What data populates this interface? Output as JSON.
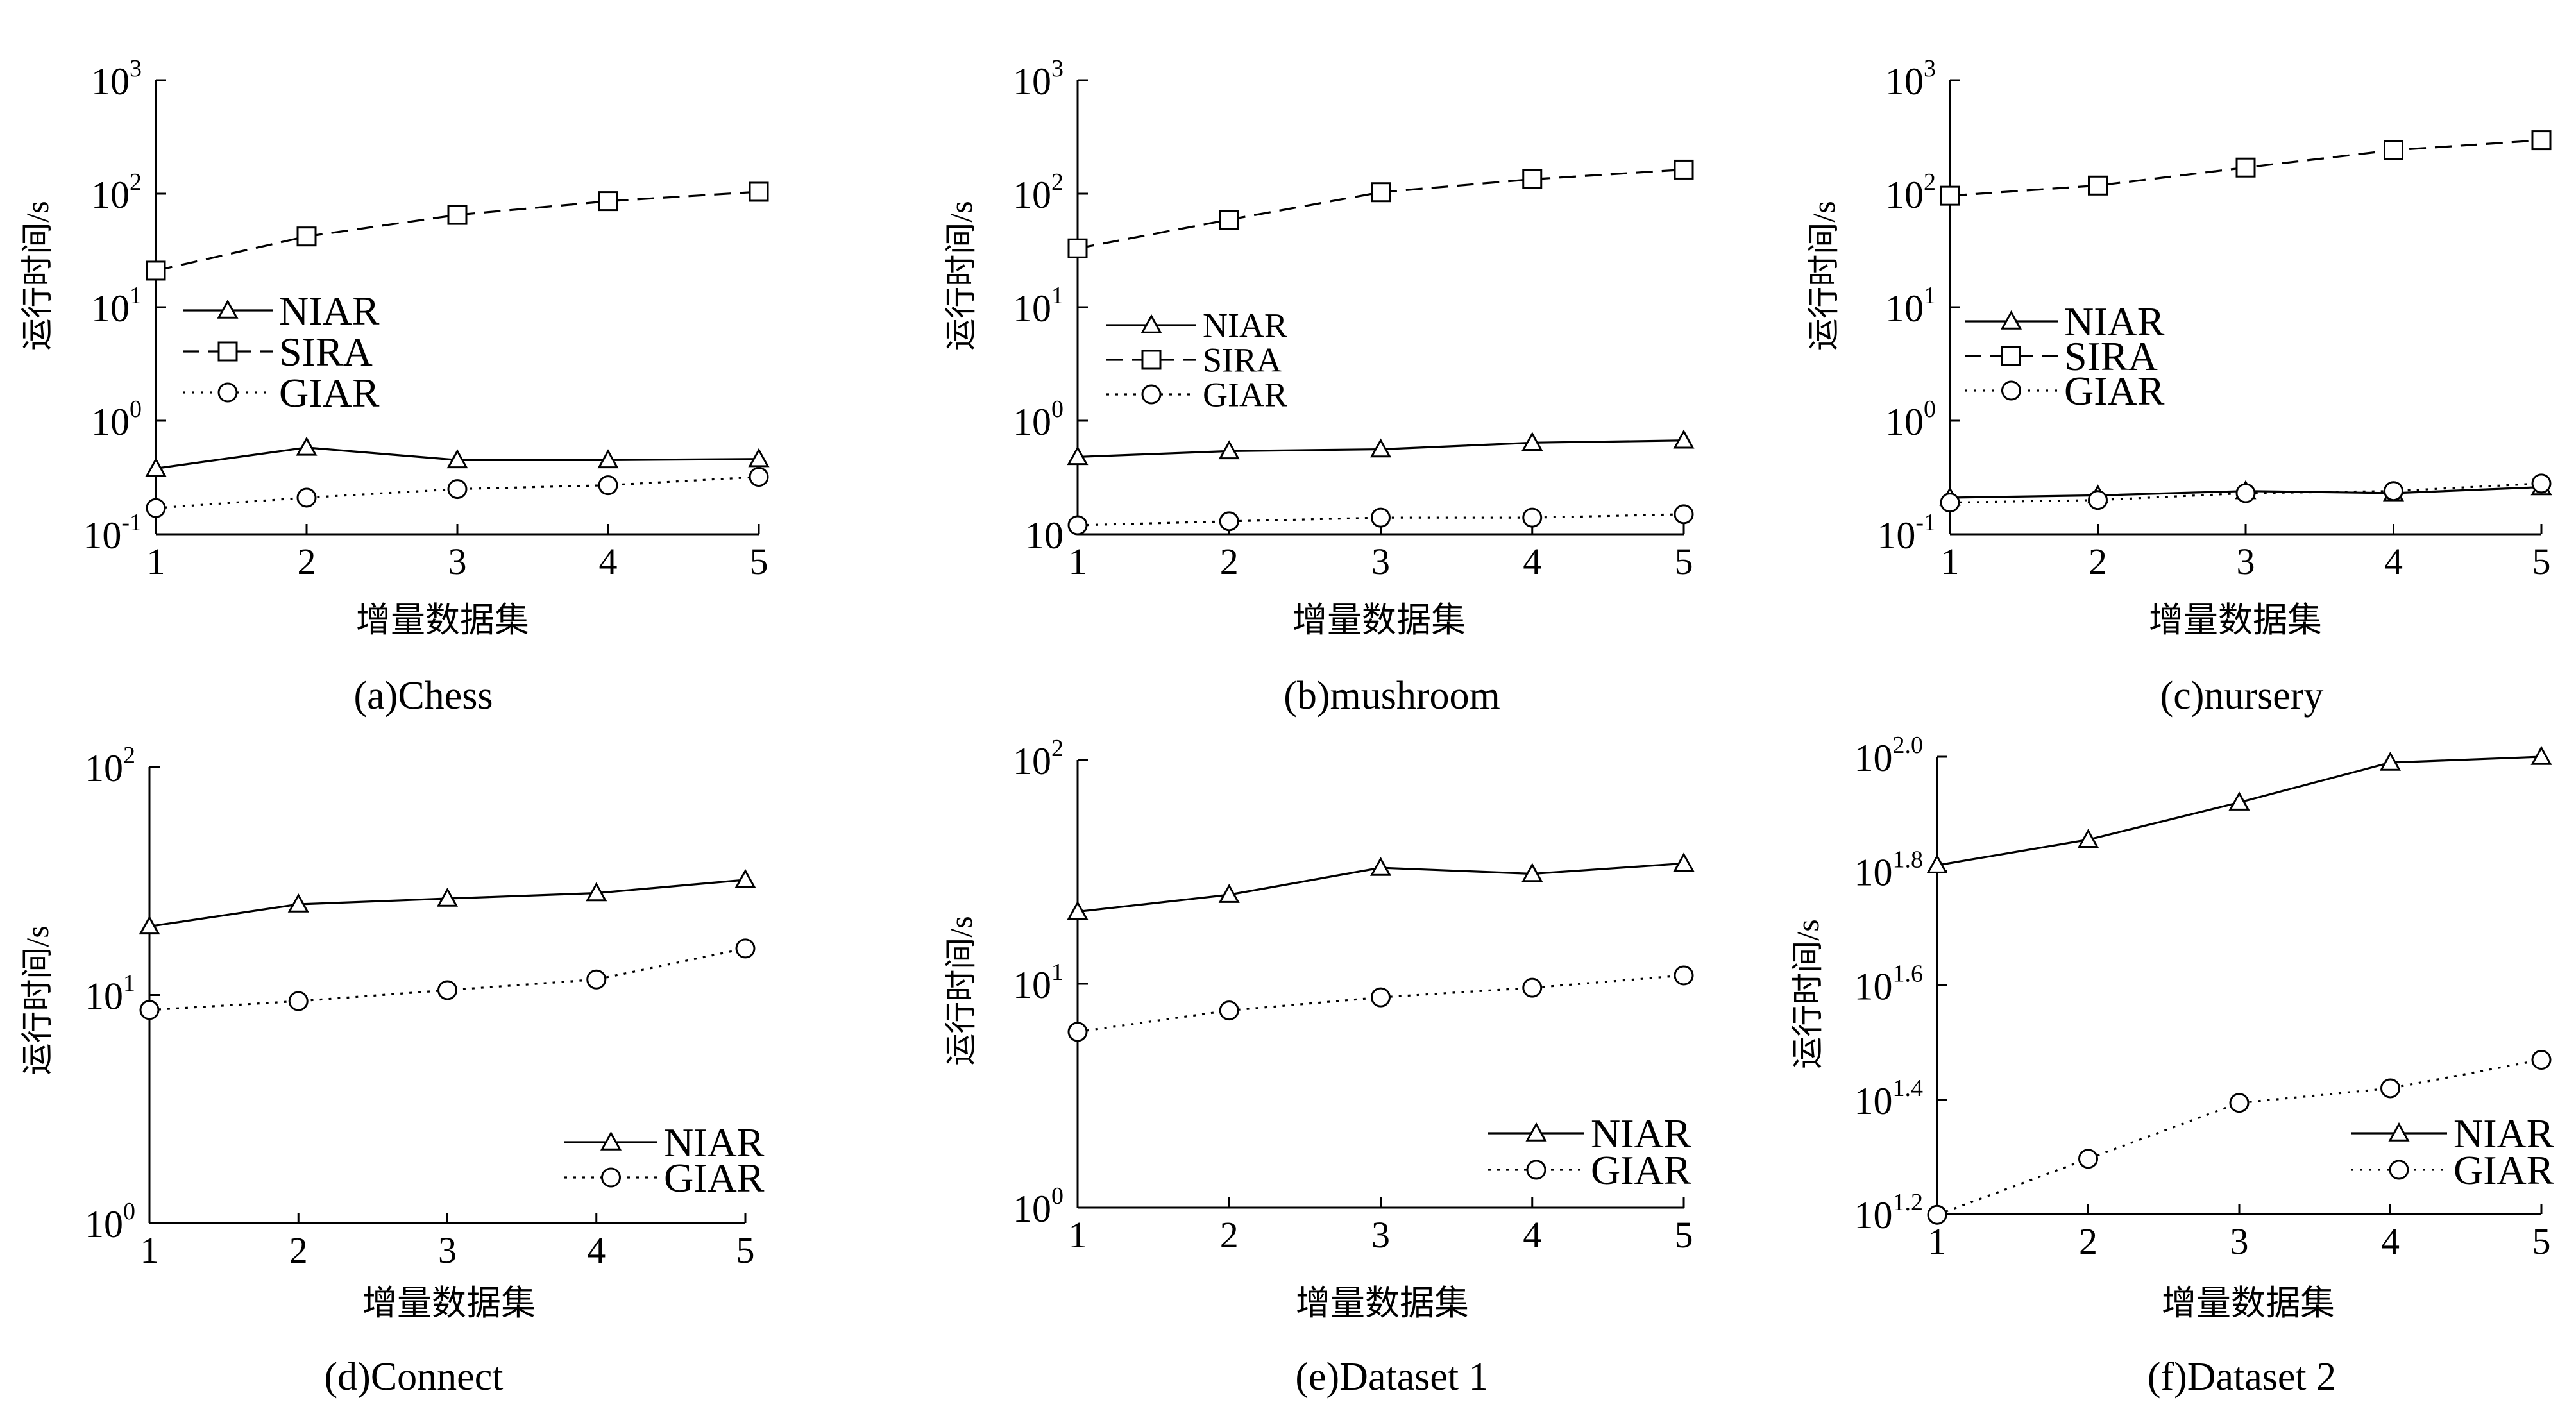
{
  "figure": {
    "xlabel": "增量数据集",
    "ylabel": "运行时间/s"
  },
  "chart_data": [
    {
      "type": "line",
      "caption": "(a)Chess",
      "xlabel": "增量数据集",
      "ylabel": "运行时间/s",
      "yscale": "log",
      "x": [
        1,
        2,
        3,
        4,
        5
      ],
      "xticks": [
        "1",
        "2",
        "3",
        "4",
        "5"
      ],
      "ylim_log10": [
        -1,
        3
      ],
      "yticks": [
        {
          "base": "10",
          "exp": "-1"
        },
        {
          "base": "10",
          "exp": "0"
        },
        {
          "base": "10",
          "exp": "1"
        },
        {
          "base": "10",
          "exp": "2"
        },
        {
          "base": "10",
          "exp": "3"
        }
      ],
      "series": [
        {
          "name": "NIAR",
          "style": "solid",
          "marker": "triangle",
          "values": [
            0.38,
            0.58,
            0.45,
            0.45,
            0.46
          ]
        },
        {
          "name": "SIRA",
          "style": "dashed",
          "marker": "square",
          "values": [
            21,
            42,
            65,
            86,
            104
          ]
        },
        {
          "name": "GIAR",
          "style": "dotted",
          "marker": "circle",
          "values": [
            0.17,
            0.21,
            0.25,
            0.27,
            0.32
          ]
        }
      ],
      "legend": "middle-left"
    },
    {
      "type": "line",
      "caption": "(b)mushroom",
      "xlabel": "增量数据集",
      "ylabel": "运行时间/s",
      "yscale": "log",
      "x": [
        1,
        2,
        3,
        4,
        5
      ],
      "xticks": [
        "1",
        "2",
        "3",
        "4",
        "5"
      ],
      "ylim_log10": [
        -1,
        3
      ],
      "yticks": [
        {
          "base": "10",
          "exp": ""
        },
        {
          "base": "10",
          "exp": "0"
        },
        {
          "base": "10",
          "exp": "1"
        },
        {
          "base": "10",
          "exp": "2"
        },
        {
          "base": "10",
          "exp": "3"
        }
      ],
      "series": [
        {
          "name": "NIAR",
          "style": "solid",
          "marker": "triangle",
          "values": [
            0.48,
            0.54,
            0.56,
            0.64,
            0.67
          ]
        },
        {
          "name": "SIRA",
          "style": "dashed",
          "marker": "square",
          "values": [
            33,
            59,
            103,
            134,
            163
          ]
        },
        {
          "name": "GIAR",
          "style": "dotted",
          "marker": "circle",
          "values": [
            0.12,
            0.13,
            0.14,
            0.14,
            0.15
          ]
        }
      ],
      "legend": "middle-left"
    },
    {
      "type": "line",
      "caption": "(c)nursery",
      "xlabel": "增量数据集",
      "ylabel": "运行时间/s",
      "yscale": "log",
      "x": [
        1,
        2,
        3,
        4,
        5
      ],
      "xticks": [
        "1",
        "2",
        "3",
        "4",
        "5"
      ],
      "ylim_log10": [
        -1,
        3
      ],
      "yticks": [
        {
          "base": "10",
          "exp": "-1"
        },
        {
          "base": "10",
          "exp": "0"
        },
        {
          "base": "10",
          "exp": "1"
        },
        {
          "base": "10",
          "exp": "2"
        },
        {
          "base": "10",
          "exp": "3"
        }
      ],
      "series": [
        {
          "name": "NIAR",
          "style": "solid",
          "marker": "triangle",
          "values": [
            0.21,
            0.22,
            0.24,
            0.23,
            0.26
          ]
        },
        {
          "name": "SIRA",
          "style": "dashed",
          "marker": "square",
          "values": [
            96,
            118,
            170,
            242,
            296
          ]
        },
        {
          "name": "GIAR",
          "style": "dotted",
          "marker": "circle",
          "values": [
            0.19,
            0.2,
            0.23,
            0.24,
            0.28
          ]
        }
      ],
      "legend": "middle-left"
    },
    {
      "type": "line",
      "caption": "(d)Connect",
      "xlabel": "增量数据集",
      "ylabel": "运行时间/s",
      "yscale": "log",
      "x": [
        1,
        2,
        3,
        4,
        5
      ],
      "xticks": [
        "1",
        "2",
        "3",
        "4",
        "5"
      ],
      "ylim_log10": [
        0,
        2
      ],
      "yticks": [
        {
          "base": "10",
          "exp": "0"
        },
        {
          "base": "10",
          "exp": "1"
        },
        {
          "base": "10",
          "exp": "2"
        }
      ],
      "series": [
        {
          "name": "NIAR",
          "style": "solid",
          "marker": "triangle",
          "values": [
            20,
            25,
            26.5,
            28,
            32
          ]
        },
        {
          "name": "GIAR",
          "style": "dotted",
          "marker": "circle",
          "values": [
            8.6,
            9.4,
            10.5,
            11.7,
            16
          ]
        }
      ],
      "legend": "bottom-right"
    },
    {
      "type": "line",
      "caption": "(e)Dataset 1",
      "xlabel": "增量数据集",
      "ylabel": "运行时间/s",
      "yscale": "log",
      "x": [
        1,
        2,
        3,
        4,
        5
      ],
      "xticks": [
        "1",
        "2",
        "3",
        "4",
        "5"
      ],
      "ylim_log10": [
        0,
        2
      ],
      "yticks": [
        {
          "base": "10",
          "exp": "0"
        },
        {
          "base": "10",
          "exp": "1"
        },
        {
          "base": "10",
          "exp": "2"
        }
      ],
      "series": [
        {
          "name": "NIAR",
          "style": "solid",
          "marker": "triangle",
          "values": [
            21,
            25,
            33,
            31,
            34.5
          ]
        },
        {
          "name": "GIAR",
          "style": "dotted",
          "marker": "circle",
          "values": [
            6.1,
            7.6,
            8.7,
            9.6,
            10.9
          ]
        }
      ],
      "legend": "bottom-right"
    },
    {
      "type": "line",
      "caption": "(f)Dataset 2",
      "xlabel": "增量数据集",
      "ylabel": "运行时间/s",
      "yscale": "log",
      "x": [
        1,
        2,
        3,
        4,
        5
      ],
      "xticks": [
        "1",
        "2",
        "3",
        "4",
        "5"
      ],
      "ylim_log10": [
        1.2,
        2.0
      ],
      "yticks": [
        {
          "base": "10",
          "exp": "1.2"
        },
        {
          "base": "10",
          "exp": "1.4"
        },
        {
          "base": "10",
          "exp": "1.6"
        },
        {
          "base": "10",
          "exp": "1.8"
        },
        {
          "base": "10",
          "exp": "2.0"
        }
      ],
      "series": [
        {
          "name": "NIAR",
          "style": "solid",
          "marker": "triangle",
          "values": [
            64.6,
            71.6,
            83.2,
            97.7,
            100
          ]
        },
        {
          "name": "GIAR",
          "style": "dotted",
          "marker": "circle",
          "values": [
            15.8,
            19.8,
            24.8,
            26.3,
            29.5
          ]
        }
      ],
      "legend": "bottom-right"
    }
  ]
}
